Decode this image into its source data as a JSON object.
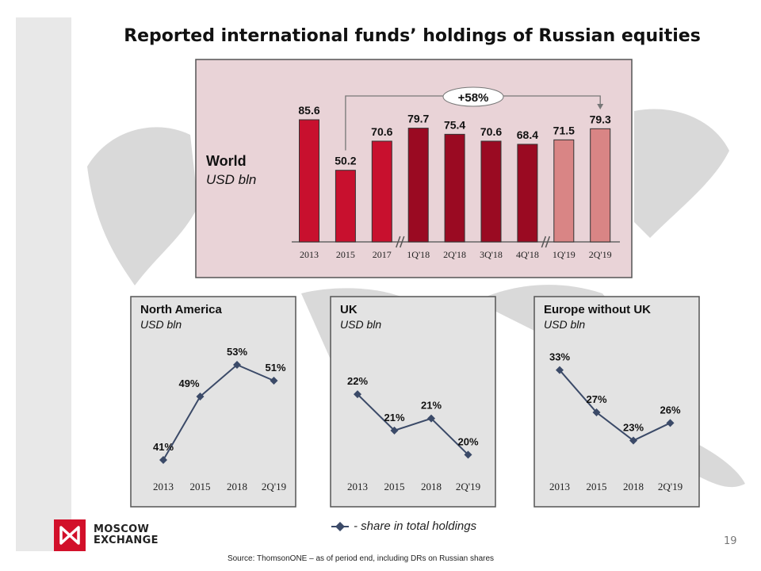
{
  "title": "Reported international funds’ holdings of Russian equities",
  "legend": "- share in total holdings",
  "logo": {
    "line1": "MOSCOW",
    "line2": "EXCHANGE"
  },
  "page_number": "19",
  "source": "Source: ThomsonONE – as of period end, including DRs on Russian shares",
  "colors": {
    "bar_annual": "#c8102e",
    "bar_2018": "#9a0a22",
    "bar_2019": "#d98585",
    "line": "#3b4a68",
    "panel_world": "#e9d3d7",
    "panel_region": "#e3e3e3"
  },
  "chart_data": [
    {
      "type": "bar",
      "title": "World",
      "unit": "USD bln",
      "categories": [
        "2013",
        "2015",
        "2017",
        "1Q'18",
        "2Q'18",
        "3Q'18",
        "4Q'18",
        "1Q'19",
        "2Q'19"
      ],
      "values": [
        85.6,
        50.2,
        70.6,
        79.7,
        75.4,
        70.6,
        68.4,
        71.5,
        79.3
      ],
      "value_labels": [
        "85.6",
        "50.2",
        "70.6",
        "79.7",
        "75.4",
        "70.6",
        "68.4",
        "71.5",
        "79.3"
      ],
      "color_groups": [
        "bar_annual",
        "bar_annual",
        "bar_annual",
        "bar_2018",
        "bar_2018",
        "bar_2018",
        "bar_2018",
        "bar_2019",
        "bar_2019"
      ],
      "axis_breaks_after": [
        "2017",
        "4Q'18"
      ],
      "annotation": {
        "text": "+58%",
        "from": "2015",
        "to": "2Q'19"
      },
      "ylim": [
        0,
        90
      ]
    },
    {
      "type": "line",
      "title": "North America",
      "unit": "USD bln",
      "categories": [
        "2013",
        "2015",
        "2018",
        "2Q'19"
      ],
      "values": [
        41,
        49,
        53,
        51
      ],
      "value_labels": [
        "41%",
        "49%",
        "53%",
        "51%"
      ],
      "ylim": [
        39,
        55
      ]
    },
    {
      "type": "line",
      "title": "UK",
      "unit": "USD bln",
      "categories": [
        "2013",
        "2015",
        "2018",
        "2Q'19"
      ],
      "values": [
        22,
        20.8,
        21.2,
        20
      ],
      "value_labels": [
        "22%",
        "21%",
        "21%",
        "20%"
      ],
      "ylim": [
        19.3,
        23.5
      ]
    },
    {
      "type": "line",
      "title": "Europe without UK",
      "unit": "USD bln",
      "categories": [
        "2013",
        "2015",
        "2018",
        "2Q'19"
      ],
      "values": [
        33,
        27,
        23,
        25.5
      ],
      "value_labels": [
        "33%",
        "27%",
        "23%",
        "26%"
      ],
      "ylim": [
        18,
        36
      ]
    }
  ]
}
